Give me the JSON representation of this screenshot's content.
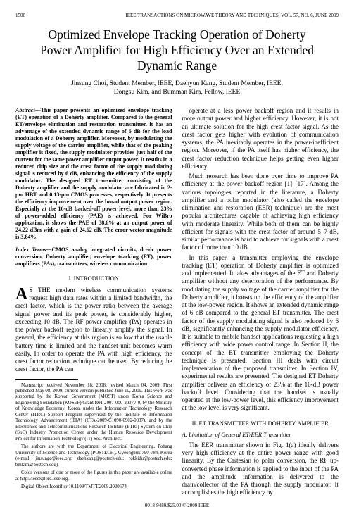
{
  "header": {
    "page": "1508",
    "journal": "IEEE TRANSACTIONS ON MICROWAVE THEORY AND TECHNIQUES, VOL. 57, NO. 6, JUNE 2009"
  },
  "title": "Optimized Envelope Tracking Operation of Doherty Power Amplifier for High Efficiency Over an Extended Dynamic Range",
  "authors": {
    "line1": "Jinsung Choi, Student Member, IEEE, Daehyun Kang, Student Member, IEEE,",
    "line2": "Dongsu Kim, and Bumman Kim, Fellow, IEEE"
  },
  "abstract_label": "Abstract—",
  "abstract": "This paper presents an optimized envelope tracking (ET) operation of a Doherty amplifier. Compared to the general ET/envelope elimination and restoration transmitter, it has an advantage of the extended dynamic range of 6 dB for the load modulation of a Doherty amplifier. Moreover, by modulating the supply voltage of the carrier amplifier, while that of the peaking amplifier is fixed, the supply modulator provides just half of the current for the same power amplifier output power. It results in a reduced chip size and the crest factor of the supply modulating signal is reduced by 6 dB, enhancing the efficiency of the supply modulator. The designed ET transmitter consisting of the Doherty amplifier and the supply modulator are fabricated in 2-μm HBT and 0.13-μm CMOS processes, respectively. It presents the efficiency improvement over the broad output power region. Especially at the 16-dB backed-off power level, more than 23% of power-added efficiency (PAE) is achieved. For WiBro application, it shows the PAE of 38.6% at an output power of 24.22 dBm with a gain of 24.62 dB. The error vector magnitude is 3.64%.",
  "index_label": "Index Terms—",
  "index_terms": "CMOS analog integrated circuits, dc–dc power conversion, Doherty amplifier, envelope tracking (ET), power amplifiers (PAs), transmitters, wireless communication.",
  "section1": "I. INTRODUCTION",
  "intro_first": "S THE modern wireless communication systems request high data rates within a limited bandwidth, the crest factor, which is the power ratio between the average signal power and its peak power, is considerably higher, exceeding 10 dB. The RF power amplifier (PA) operates in the power backoff region to linearly amplify the signal. In general, the efficiency at this region is so low that the usable battery time is limited and the handset unit becomes warm easily. In order to operate the PA with high efficiency, the crest factor reduction technique can be used. By reducing the crest factor, the PA can",
  "footnotes": {
    "f1": "Manuscript received November 18, 2008; revised March 04, 2009. First published May 08, 2009; current version published June 10, 2009. This work was supported by the Korean Government (MOST) under Korea Science and Engineering Foundation (KOSEF) Grant R01-2007-000-20377-0, by the Ministry of Knowledge Economy, Korea, under the Information Technology Research Center (ITRC) Support Program supervised by the Institute of Information Technology Advancement (IITA) (IITA-2009-C1090-0902-0037), and by the Electronics and Telecommunications Research Institute (ETRI) System-on-Chip (SoC) Industry Promotion Center under the Human Resource Development Project for Information Technology (IT) SoC Architect.",
    "f2": "The authors are with the Department of Electrical Engineering, Pohang University of Science and Technology (POSTECH), Gyeongbuk 790-784, Korea (e-mail: jinsungc@ieee.org; daehkang@postech.edu; rokkidu@postech.edu; bmkim@postech.edu).",
    "f3": "Color versions of one or more of the figures in this paper are available online at http://ieeexplore.ieee.org.",
    "f4": "Digital Object Identifier 10.1109/TMTT.2009.2020674"
  },
  "col2_p1": "operate at a less power backoff region and it results in more output power and higher efficiency. However, it is not an ultimate solution for the high crest factor signal. As the crest factor gets higher with evolution of communication systems, the PA inevitably operates in the power-inefficient region. Moreover, if the PA itself has higher efficiency, the crest factor reduction technique helps getting even higher efficiency.",
  "col2_p2": "Much research has been done over time to improve PA efficiency at the power backoff region [1]–[17]. Among the various topologies reported in the literature, a Doherty amplifier and a polar modulator (also called the envelope elimination and restoration (EER) technique) are the most popular architectures capable of achieving high efficiency with moderate linearity. While both of them can be highly efficient for signals with the crest factor of around 5–7 dB, similar performance is hard to achieve for signals with a crest factor of more than 10 dB.",
  "col2_p3": "In this paper, a transmitter employing the envelope tracking (ET) operation of Doherty amplifier is optimized and implemented. It takes advantages of the ET and Doherty amplifier without any deterioration of the performance. By modulating the supply voltage of the carrier amplifier for the Doherty amplifier, it boosts up the efficiency of the amplifier at the low-power region. It shows an extended dynamic range of 6 dB compared to the general ET transmitter. The crest factor of the supply modulating signal is also reduced by 6 dB, significantly enhancing the supply modulator efficiency. It is suitable to mobile handset applications requesting a high efficiency with wide power control range. In Section II, the concept of the ET transmitter employing the Doherty technique is presented. Section III deals with circuit implementation of the proposed transmitter. In Section IV, experimental results are presented. The designed ET Doherty amplifier delivers an efficiency of 23% at the 16-dB power backoff level. Considering that the handset is usually operated at the low-power level, this efficiency improvement at the low level is very significant.",
  "section2": "II. ET TRANSMITTER WITH DOHERTY AMPLIFIER",
  "subA": "A. Limitation of General ET/EER Transmitter",
  "col2_p4": "The EER transmitter shown in Fig. 1(a) ideally delivers very high efficiency at the entire power range with good linearity. By the Cartesian to polar conversion, the RF up-converted phase information is applied to the input of the PA and the amplitude information is delivered to the drain/collector of the PA through the supply modulator. It accomplishes the high efficiency by",
  "footer": "0018-9480/$25.00 © 2009 IEEE"
}
